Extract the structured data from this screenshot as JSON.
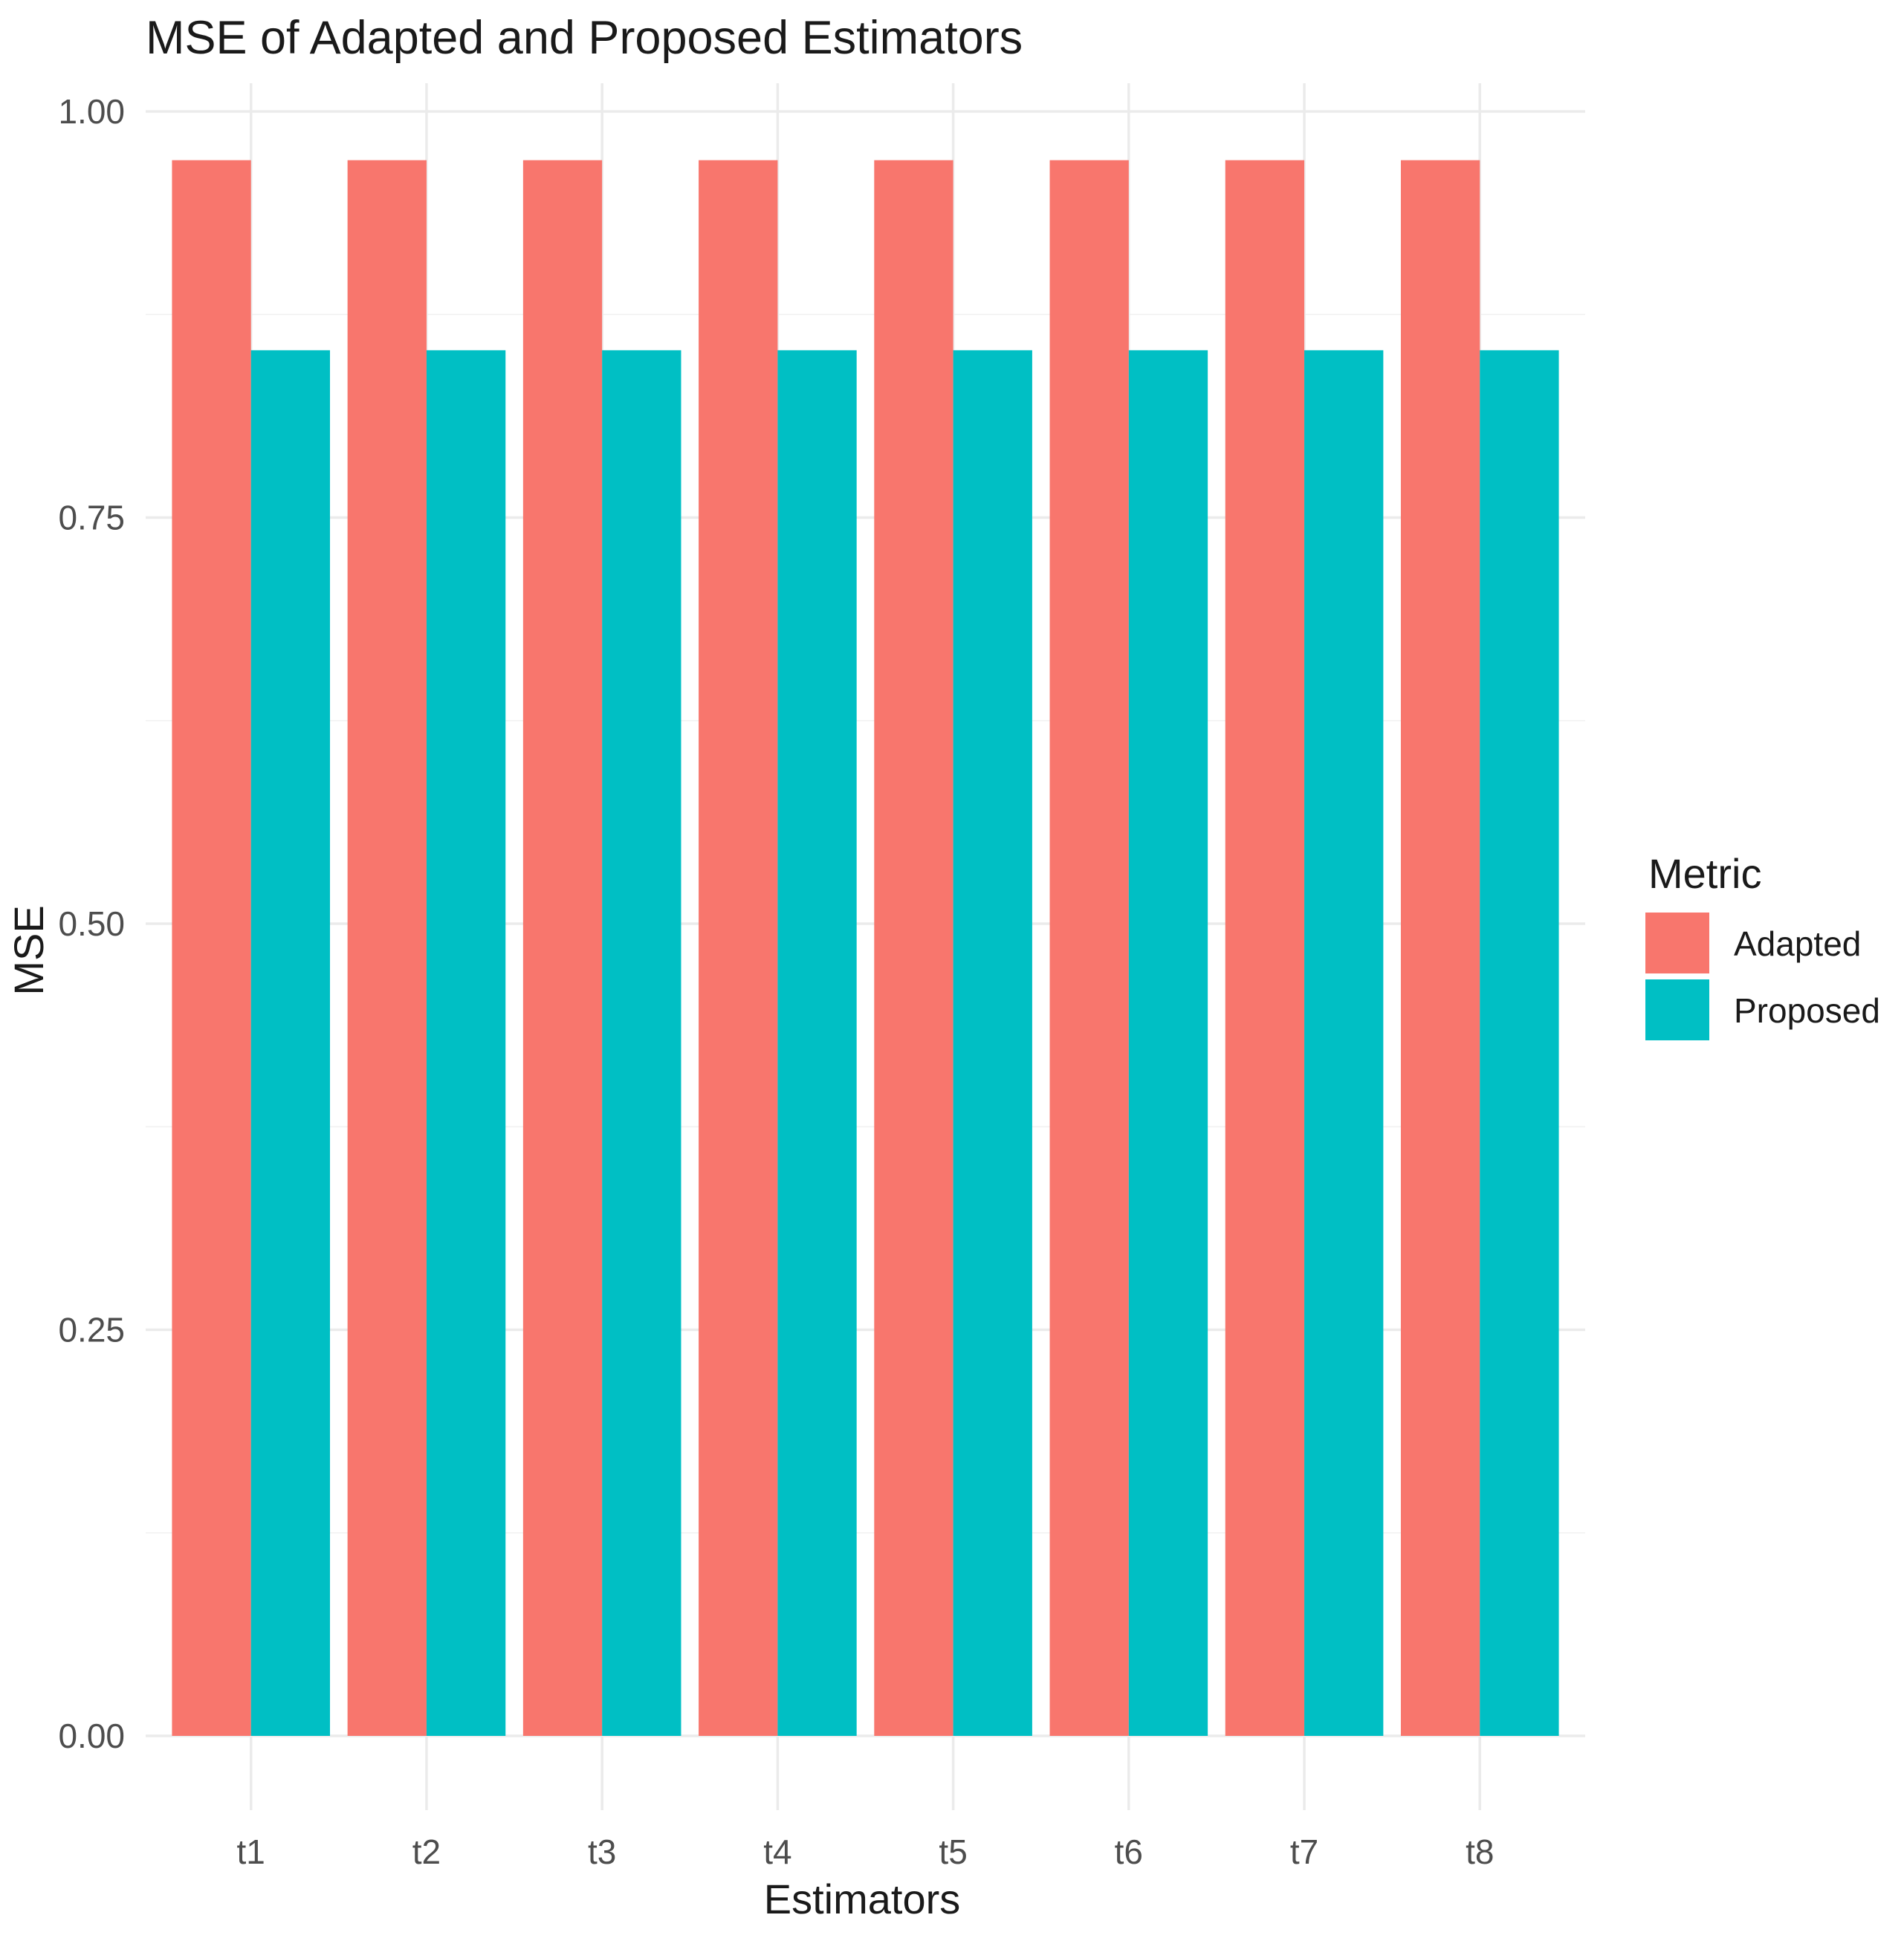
{
  "chart_data": {
    "type": "bar",
    "title": "MSE of Adapted and Proposed Estimators",
    "xlabel": "Estimators",
    "ylabel": "MSE",
    "categories": [
      "t1",
      "t2",
      "t3",
      "t4",
      "t5",
      "t6",
      "t7",
      "t8"
    ],
    "series": [
      {
        "name": "Adapted",
        "color": "#F8766D",
        "values": [
          0.97,
          0.97,
          0.97,
          0.97,
          0.97,
          0.97,
          0.97,
          0.97
        ]
      },
      {
        "name": "Proposed",
        "color": "#00BFC4",
        "values": [
          0.853,
          0.853,
          0.853,
          0.853,
          0.853,
          0.853,
          0.853,
          0.853
        ]
      }
    ],
    "ylim": [
      0,
      1.0
    ],
    "yticks": [
      0.0,
      0.25,
      0.5,
      0.75,
      1.0
    ],
    "ytick_labels": [
      "0.00",
      "0.25",
      "0.50",
      "0.75",
      "1.00"
    ],
    "grid": true,
    "legend": {
      "title": "Metric",
      "position": "right"
    }
  }
}
